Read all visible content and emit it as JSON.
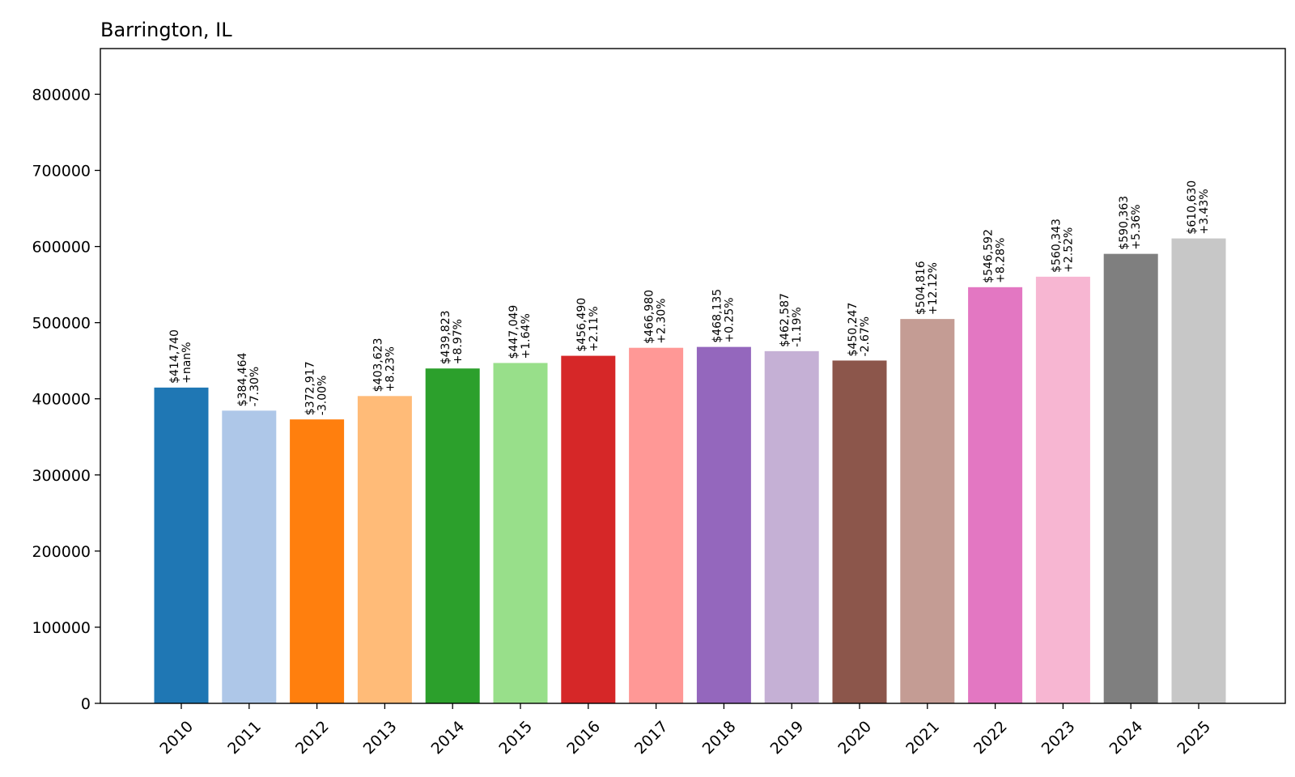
{
  "chart_data": {
    "type": "bar",
    "title": "Barrington, IL",
    "xlabel": "",
    "ylabel": "",
    "ylim": [
      0,
      860000
    ],
    "yticks": [
      0,
      100000,
      200000,
      300000,
      400000,
      500000,
      600000,
      700000,
      800000
    ],
    "grid": false,
    "legend": "none",
    "categories": [
      "2010",
      "2011",
      "2012",
      "2013",
      "2014",
      "2015",
      "2016",
      "2017",
      "2018",
      "2019",
      "2020",
      "2021",
      "2022",
      "2023",
      "2024",
      "2025"
    ],
    "values": [
      414740,
      384464,
      372917,
      403623,
      439823,
      447049,
      456490,
      466980,
      468135,
      462587,
      450247,
      504816,
      546592,
      560343,
      590363,
      610630
    ],
    "value_labels": [
      "$414,740",
      "$384,464",
      "$372,917",
      "$403,623",
      "$439,823",
      "$447,049",
      "$456,490",
      "$466,980",
      "$468,135",
      "$462,587",
      "$450,247",
      "$504,816",
      "$546,592",
      "$560,343",
      "$590,363",
      "$610,630"
    ],
    "change_labels": [
      "+nan%",
      "-7.30%",
      "-3.00%",
      "+8.23%",
      "+8.97%",
      "+1.64%",
      "+2.11%",
      "+2.30%",
      "+0.25%",
      "-1.19%",
      "-2.67%",
      "+12.12%",
      "+8.28%",
      "+2.52%",
      "+5.36%",
      "+3.43%"
    ],
    "colors": [
      "#1f77b4",
      "#aec7e8",
      "#ff7f0e",
      "#ffbb78",
      "#2ca02c",
      "#98df8a",
      "#d62728",
      "#ff9896",
      "#9467bd",
      "#c5b0d5",
      "#8c564b",
      "#c49c94",
      "#e377c2",
      "#f7b6d2",
      "#7f7f7f",
      "#c7c7c7"
    ]
  }
}
